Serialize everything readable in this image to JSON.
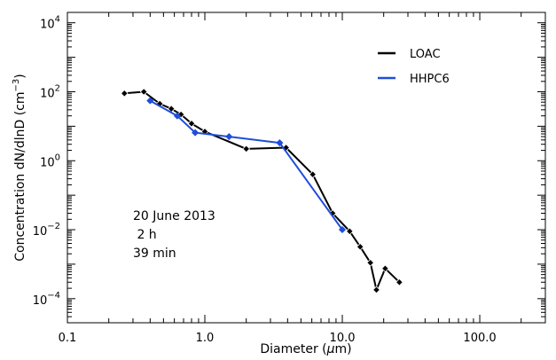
{
  "chart_data": {
    "type": "line",
    "x_scale": "log",
    "y_scale": "log",
    "xlim": [
      0.1,
      300
    ],
    "ylim": [
      2e-05,
      20000
    ],
    "x_ticks": [
      {
        "value": 0.1,
        "label": "0.1"
      },
      {
        "value": 1,
        "label": "1.0"
      },
      {
        "value": 10,
        "label": "10.0"
      },
      {
        "value": 100,
        "label": "100.0"
      }
    ],
    "y_ticks": [
      {
        "value": 0.0001,
        "base": "10",
        "exp": "−4"
      },
      {
        "value": 0.01,
        "base": "10",
        "exp": "−2"
      },
      {
        "value": 1,
        "base": "10",
        "exp": "0"
      },
      {
        "value": 100,
        "base": "10",
        "exp": "2"
      },
      {
        "value": 10000,
        "base": "10",
        "exp": "4"
      }
    ],
    "xlabel": {
      "pre": "Diameter (",
      "mu": "μ",
      "post": "m)"
    },
    "ylabel": {
      "main": "Concentration dN/dlnD (cm",
      "sup": "−3",
      "close": ")"
    },
    "legend_position": "top-right",
    "annotation": [
      "20 June 2013",
      " 2 h",
      "39 min"
    ],
    "series": [
      {
        "name": "LOAC",
        "color": "#000000",
        "marker": "diamond",
        "x": [
          0.26,
          0.36,
          0.47,
          0.57,
          0.67,
          0.8,
          1.0,
          2.0,
          3.9,
          6.1,
          8.5,
          11.3,
          13.5,
          16.0,
          17.7,
          20.5,
          26.0
        ],
        "y": [
          90,
          100,
          45,
          32,
          22,
          12,
          7,
          2.2,
          2.4,
          0.4,
          0.03,
          0.009,
          0.0032,
          0.0011,
          0.00018,
          0.00075,
          0.0003
        ]
      },
      {
        "name": "HHPC6",
        "color": "#1f4ed8",
        "marker": "diamond",
        "x": [
          0.4,
          0.63,
          0.85,
          1.5,
          3.5,
          10.0
        ],
        "y": [
          55,
          20,
          6.5,
          5,
          3.3,
          0.01
        ]
      }
    ]
  }
}
